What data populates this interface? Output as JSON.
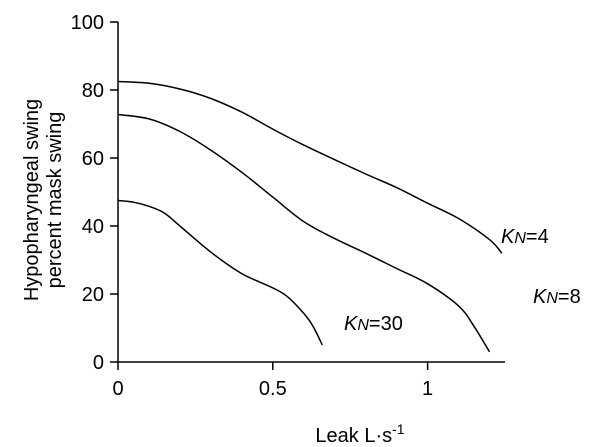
{
  "chart_data": {
    "type": "line",
    "xlabel": "Leak  L·s",
    "xlabel_superscript": "-1",
    "ylabel_line1": "Hypopharyngeal swing",
    "ylabel_line2": "percent mask swing",
    "xlim": [
      0,
      1.25
    ],
    "ylim": [
      0,
      100
    ],
    "xticks": [
      "0",
      "0.5",
      "1"
    ],
    "xtick_values": [
      0,
      0.5,
      1
    ],
    "yticks": [
      "0",
      "20",
      "40",
      "60",
      "80",
      "100"
    ],
    "ytick_values": [
      0,
      20,
      40,
      60,
      80,
      100
    ],
    "grid": false,
    "series": [
      {
        "name": "KN=4",
        "label_prefix": "K",
        "label_subscript": "N",
        "label_suffix": "=4",
        "x": [
          0,
          0.1,
          0.2,
          0.3,
          0.4,
          0.5,
          0.6,
          0.7,
          0.8,
          0.9,
          1.0,
          1.1,
          1.2,
          1.24
        ],
        "y": [
          82.5,
          82,
          80.3,
          77.5,
          73.5,
          68.5,
          63.8,
          59.5,
          55.3,
          51.3,
          46.7,
          42.2,
          36,
          32
        ]
      },
      {
        "name": "KN=8",
        "label_prefix": "K",
        "label_subscript": "N",
        "label_suffix": "=8",
        "x": [
          0,
          0.1,
          0.2,
          0.3,
          0.4,
          0.5,
          0.6,
          0.7,
          0.8,
          0.9,
          1.0,
          1.1,
          1.15,
          1.2
        ],
        "y": [
          72.8,
          71.5,
          67.8,
          62.3,
          55.8,
          48.5,
          41.3,
          36.3,
          32,
          27.5,
          23,
          16.5,
          10.5,
          3
        ]
      },
      {
        "name": "KN=30",
        "label_prefix": "K",
        "label_subscript": "N",
        "label_suffix": "=30",
        "x": [
          0,
          0.05,
          0.1,
          0.15,
          0.2,
          0.3,
          0.4,
          0.5,
          0.55,
          0.6,
          0.63,
          0.66
        ],
        "y": [
          47.5,
          47,
          45.8,
          43.8,
          40,
          32.3,
          26,
          21.8,
          19,
          14.3,
          10.5,
          5
        ]
      }
    ]
  }
}
